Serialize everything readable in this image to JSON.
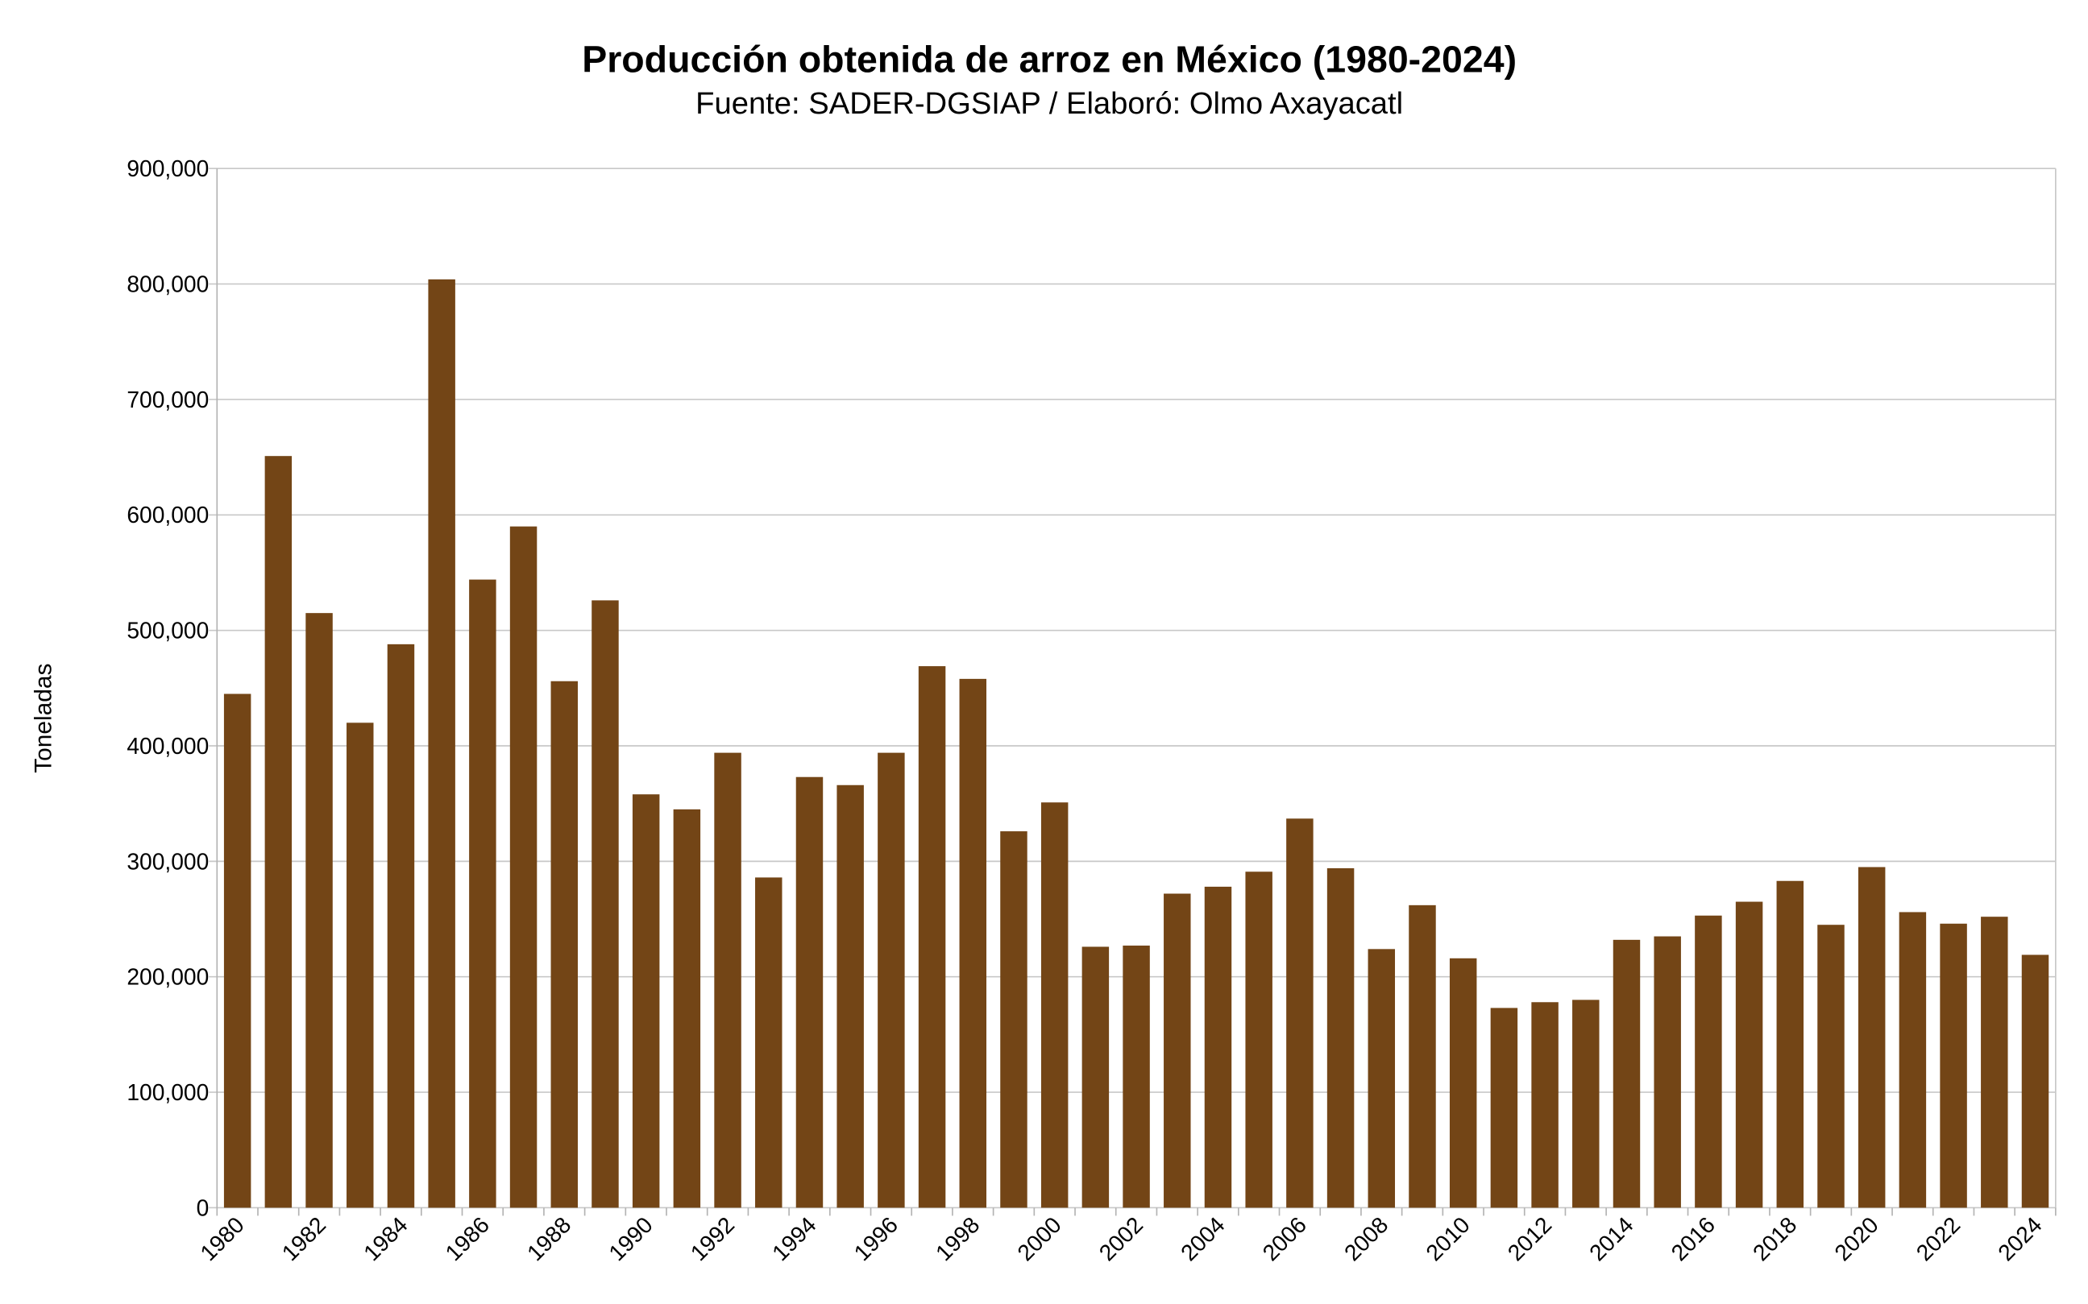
{
  "chart_data": {
    "type": "bar",
    "title": "Producción obtenida de arroz en México (1980-2024)",
    "subtitle": "Fuente: SADER-DGSIAP / Elaboró: Olmo Axayacatl",
    "xlabel": "",
    "ylabel": "Toneladas",
    "ylim": [
      0,
      900000
    ],
    "yticks": [
      0,
      100000,
      200000,
      300000,
      400000,
      500000,
      600000,
      700000,
      800000,
      900000
    ],
    "ytick_labels": [
      "0",
      "100,000",
      "200,000",
      "300,000",
      "400,000",
      "500,000",
      "600,000",
      "700,000",
      "800,000",
      "900,000"
    ],
    "grid": true,
    "bar_color": "#734516",
    "categories": [
      "1980",
      "1981",
      "1982",
      "1983",
      "1984",
      "1985",
      "1986",
      "1987",
      "1988",
      "1989",
      "1990",
      "1991",
      "1992",
      "1993",
      "1994",
      "1995",
      "1996",
      "1997",
      "1998",
      "1999",
      "2000",
      "2001",
      "2002",
      "2003",
      "2004",
      "2005",
      "2006",
      "2007",
      "2008",
      "2009",
      "2010",
      "2011",
      "2012",
      "2013",
      "2014",
      "2015",
      "2016",
      "2017",
      "2018",
      "2019",
      "2020",
      "2021",
      "2022",
      "2023",
      "2024"
    ],
    "xtick_labels": [
      "1980",
      "1982",
      "1984",
      "1986",
      "1988",
      "1990",
      "1992",
      "1994",
      "1996",
      "1998",
      "2000",
      "2002",
      "2004",
      "2006",
      "2008",
      "2010",
      "2012",
      "2014",
      "2016",
      "2018",
      "2020",
      "2022",
      "2024"
    ],
    "values": [
      445000,
      651000,
      515000,
      420000,
      488000,
      804000,
      544000,
      590000,
      456000,
      526000,
      358000,
      345000,
      394000,
      286000,
      373000,
      366000,
      394000,
      469000,
      458000,
      326000,
      351000,
      226000,
      227000,
      272000,
      278000,
      291000,
      337000,
      294000,
      224000,
      262000,
      216000,
      173000,
      178000,
      180000,
      232000,
      235000,
      253000,
      265000,
      283000,
      245000,
      295000,
      256000,
      246000,
      252000,
      219000
    ]
  }
}
